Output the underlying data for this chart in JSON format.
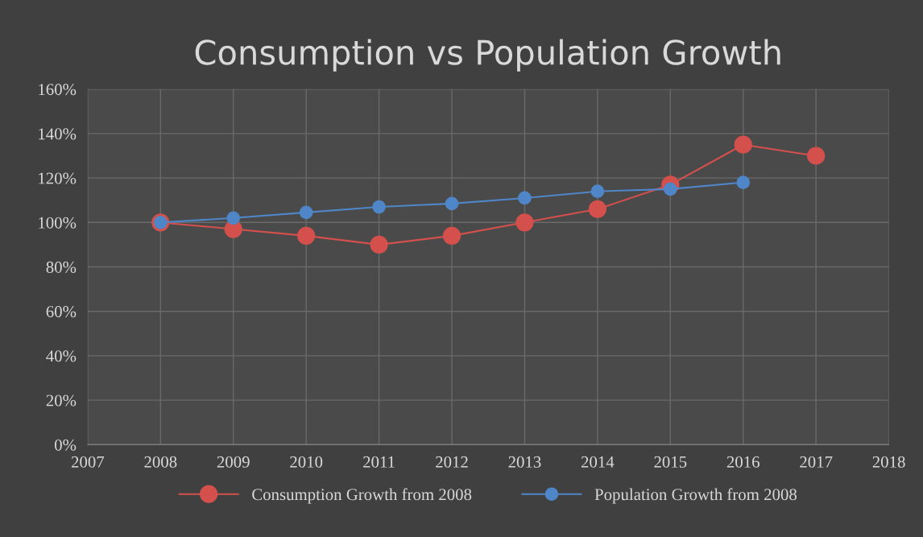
{
  "chart_data": {
    "type": "line",
    "title": "Consumption vs Population Growth",
    "x": [
      2008,
      2009,
      2010,
      2011,
      2012,
      2013,
      2014,
      2015,
      2016,
      2017
    ],
    "series": [
      {
        "name": "Consumption Growth from 2008",
        "color": "#d4504c",
        "values": [
          100,
          97,
          94,
          90,
          94,
          100,
          106,
          117,
          135,
          130
        ]
      },
      {
        "name": "Population Growth from 2008",
        "color": "#4f86c8",
        "values": [
          100,
          102,
          104.5,
          107,
          108.5,
          111,
          114,
          115,
          118,
          null
        ]
      }
    ],
    "xlim": [
      2007,
      2018
    ],
    "xticks": [
      2007,
      2008,
      2009,
      2010,
      2011,
      2012,
      2013,
      2014,
      2015,
      2016,
      2017,
      2018
    ],
    "ylim": [
      0,
      160
    ],
    "yticks": [
      {
        "value": 0,
        "label": "0%"
      },
      {
        "value": 20,
        "label": "20%"
      },
      {
        "value": 40,
        "label": "40%"
      },
      {
        "value": 60,
        "label": "60%"
      },
      {
        "value": 80,
        "label": "80%"
      },
      {
        "value": 100,
        "label": "100%"
      },
      {
        "value": 120,
        "label": "120%"
      },
      {
        "value": 140,
        "label": "140%"
      },
      {
        "value": 160,
        "label": "160%"
      }
    ],
    "grid": true,
    "legend": "bottom",
    "marker": "circle",
    "line_style": "solid"
  }
}
